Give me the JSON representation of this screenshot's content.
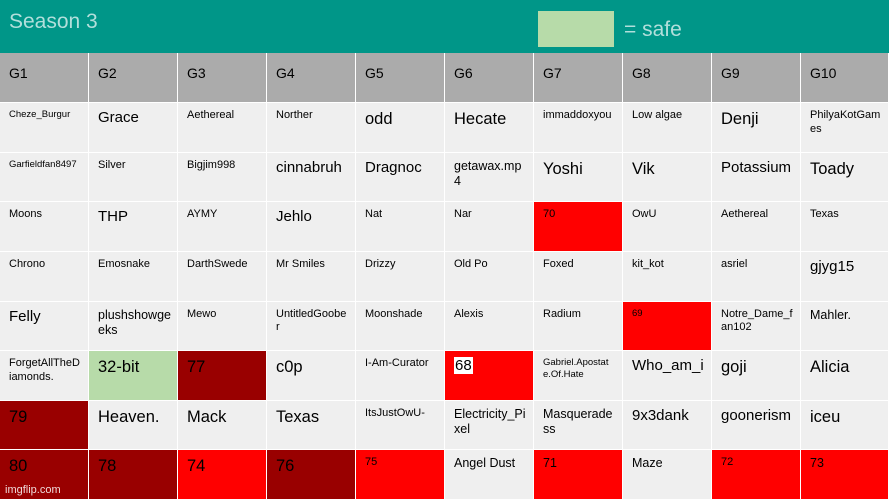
{
  "title": "Season 3",
  "legend": {
    "text": "= safe",
    "color": "#b7dba9"
  },
  "colors": {
    "red": "#ff0000",
    "dark": "#990000",
    "green": "#b7dba9",
    "header": "#009688",
    "grey": "#ababab",
    "cell": "#efefef"
  },
  "headers": [
    "G1",
    "G2",
    "G3",
    "G4",
    "G5",
    "G6",
    "G7",
    "G8",
    "G9",
    "G10"
  ],
  "rows": [
    [
      {
        "text": "Cheze_Burgur",
        "size": "s1"
      },
      {
        "text": "Grace",
        "size": "s4"
      },
      {
        "text": "Aethereal",
        "size": "s2"
      },
      {
        "text": "Norther",
        "size": "s2"
      },
      {
        "text": "odd",
        "size": "s5"
      },
      {
        "text": "Hecate",
        "size": "s5"
      },
      {
        "text": "immaddoxyou",
        "size": "s2"
      },
      {
        "text": "Low algae",
        "size": "s2"
      },
      {
        "text": "Denji",
        "size": "s5"
      },
      {
        "text": "PhilyaKotGames",
        "size": "s2"
      }
    ],
    [
      {
        "text": "Garfieldfan8497",
        "size": "s1"
      },
      {
        "text": "Silver",
        "size": "s2"
      },
      {
        "text": "Bigjim998",
        "size": "s2"
      },
      {
        "text": "cinnabruh",
        "size": "s4"
      },
      {
        "text": "Dragnoc",
        "size": "s4"
      },
      {
        "text": "getawax.mp4",
        "size": "s3"
      },
      {
        "text": "Yoshi",
        "size": "s5"
      },
      {
        "text": "Vik",
        "size": "s5"
      },
      {
        "text": "Potassium",
        "size": "s4"
      },
      {
        "text": "Toady",
        "size": "s5"
      }
    ],
    [
      {
        "text": "Moons",
        "size": "s2"
      },
      {
        "text": "THP",
        "size": "s4"
      },
      {
        "text": "AYMY",
        "size": "s2"
      },
      {
        "text": "Jehlo",
        "size": "s4"
      },
      {
        "text": "Nat",
        "size": "s2"
      },
      {
        "text": "Nar",
        "size": "s2"
      },
      {
        "text": "70",
        "size": "s2",
        "bg": "red"
      },
      {
        "text": "OwU",
        "size": "s2"
      },
      {
        "text": "Aethereal",
        "size": "s2"
      },
      {
        "text": "Texas",
        "size": "s2"
      }
    ],
    [
      {
        "text": "Chrono",
        "size": "s2"
      },
      {
        "text": "Emosnake",
        "size": "s2"
      },
      {
        "text": "DarthSwede",
        "size": "s2"
      },
      {
        "text": "Mr Smiles",
        "size": "s2"
      },
      {
        "text": "Drizzy",
        "size": "s2"
      },
      {
        "text": "Old Po",
        "size": "s2"
      },
      {
        "text": "Foxed",
        "size": "s2"
      },
      {
        "text": "kit_kot",
        "size": "s2"
      },
      {
        "text": "asriel",
        "size": "s2"
      },
      {
        "text": "gjyg15",
        "size": "s4"
      }
    ],
    [
      {
        "text": "Felly",
        "size": "s4"
      },
      {
        "text": "plushshowgeeks",
        "size": "s3"
      },
      {
        "text": "Mewo",
        "size": "s2"
      },
      {
        "text": "UntitledGoober",
        "size": "s2"
      },
      {
        "text": "Moonshade",
        "size": "s2"
      },
      {
        "text": "Alexis",
        "size": "s2"
      },
      {
        "text": "Radium",
        "size": "s2"
      },
      {
        "text": "69",
        "size": "s1",
        "bg": "red"
      },
      {
        "text": "Notre_Dame_fan102",
        "size": "s2"
      },
      {
        "text": "Mahler.",
        "size": "s3"
      }
    ],
    [
      {
        "text": "ForgetAllTheDiamonds.",
        "size": "s2"
      },
      {
        "text": "32-bit",
        "size": "s5",
        "bg": "green"
      },
      {
        "text": "77",
        "size": "s5",
        "bg": "dark"
      },
      {
        "text": "c0p",
        "size": "s5"
      },
      {
        "text": "I-Am-Curator",
        "size": "s2"
      },
      {
        "text": "68",
        "size": "s4",
        "bg": "red",
        "boxed": true
      },
      {
        "text": "Gabriel.Apostate.Of.Hate",
        "size": "s1"
      },
      {
        "text": "Who_am_i",
        "size": "s4"
      },
      {
        "text": "goji",
        "size": "s5"
      },
      {
        "text": "Alicia",
        "size": "s5"
      }
    ],
    [
      {
        "text": "79",
        "size": "s5",
        "bg": "dark"
      },
      {
        "text": "Heaven.",
        "size": "s5"
      },
      {
        "text": "Mack",
        "size": "s5"
      },
      {
        "text": "Texas",
        "size": "s5"
      },
      {
        "text": "ItsJustOwU-",
        "size": "s2"
      },
      {
        "text": "Electricity_Pixel",
        "size": "s3"
      },
      {
        "text": "Masquerade ss",
        "size": "s3"
      },
      {
        "text": "9x3dank",
        "size": "s4"
      },
      {
        "text": "goonerism",
        "size": "s4"
      },
      {
        "text": "iceu",
        "size": "s5"
      }
    ],
    [
      {
        "text": "80",
        "size": "s5",
        "bg": "dark"
      },
      {
        "text": "78",
        "size": "s5",
        "bg": "dark"
      },
      {
        "text": "74",
        "size": "s5",
        "bg": "red"
      },
      {
        "text": "76",
        "size": "s5",
        "bg": "dark"
      },
      {
        "text": "75",
        "size": "s2",
        "bg": "red"
      },
      {
        "text": "Angel Dust",
        "size": "s3"
      },
      {
        "text": "71",
        "size": "s3",
        "bg": "red"
      },
      {
        "text": "Maze",
        "size": "s3"
      },
      {
        "text": "72",
        "size": "s2",
        "bg": "red"
      },
      {
        "text": "73",
        "size": "s3",
        "bg": "red"
      }
    ]
  ],
  "watermark": "imgflip.com"
}
